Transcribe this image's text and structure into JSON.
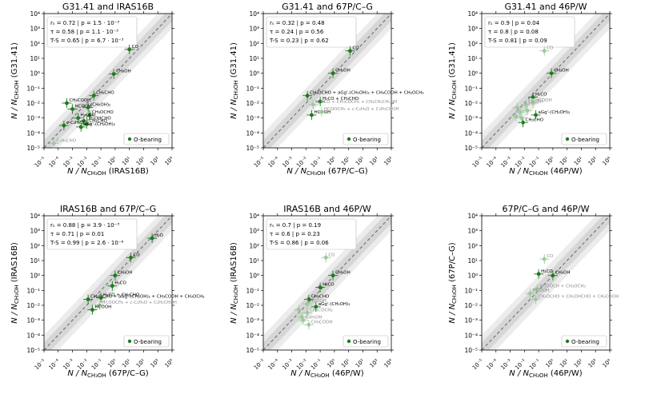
{
  "figure": {
    "legend_label": "O-bearing",
    "ylabel_sub": "CH₃OH",
    "xlabel_sub": "CH₃OH"
  },
  "chart_data": [
    {
      "type": "scatter",
      "title": "G31.41 and IRAS16B",
      "xlabel_prefix": "N / N",
      "xlabel_suffix": "(IRAS16B)",
      "ylabel_prefix": "N / N",
      "ylabel_suffix": "(G31.41)",
      "xlim_exp": [
        -5,
        4
      ],
      "ylim_exp": [
        -5,
        4
      ],
      "xticks_exp": [
        -5,
        -4,
        -3,
        -2,
        -1,
        0,
        1,
        2,
        3,
        4
      ],
      "yticks_exp": [
        -5,
        -4,
        -3,
        -2,
        -1,
        0,
        1,
        2,
        3,
        4
      ],
      "stats": [
        "rₛ = 0.72  |  p = 1.5 · 10⁻³",
        "τ = 0.58  |  p = 1.1 · 10⁻³",
        "T-S = 0.65  |  p = 6.7 · 10⁻³"
      ],
      "points": [
        {
          "label": "CO",
          "x": 1.0,
          "y": 1.6,
          "faint": false
        },
        {
          "label": "CH₃OH",
          "x": -0.1,
          "y": -0.05,
          "faint": false
        },
        {
          "label": "CH₃CHO",
          "x": -1.5,
          "y": -1.5,
          "faint": false
        },
        {
          "label": "CH₃COOH",
          "x": -3.4,
          "y": -2.0,
          "faint": false
        },
        {
          "label": "HCOOH",
          "x": -3.0,
          "y": -2.4,
          "faint": false
        },
        {
          "label": "(CH₂OH)₂",
          "x": -1.9,
          "y": -2.3,
          "faint": false
        },
        {
          "label": "CH₃OCHO",
          "x": -1.8,
          "y": -2.8,
          "faint": false
        },
        {
          "label": "CH₂OHCHO",
          "x": -2.2,
          "y": -3.2,
          "faint": false
        },
        {
          "label": "H₂CCO",
          "x": -2.6,
          "y": -3.0,
          "faint": false
        },
        {
          "label": "CH₃CHO",
          "x": -2.0,
          "y": -3.4,
          "faint": false
        },
        {
          "label": "c-C₂H₄O",
          "x": -3.6,
          "y": -3.5,
          "faint": false
        },
        {
          "label": "aGg'-(CH₂OH)₂",
          "x": -2.4,
          "y": -3.6,
          "faint": false
        },
        {
          "label": "C₂H₃CHO",
          "x": -4.3,
          "y": -4.7,
          "faint": true
        }
      ]
    },
    {
      "type": "scatter",
      "title": "G31.41 and 67P/C–G",
      "xlabel_prefix": "N / N",
      "xlabel_suffix": "(67P/C–G)",
      "ylabel_prefix": "N / N",
      "ylabel_suffix": "(G31.41)",
      "xlim_exp": [
        -5,
        4
      ],
      "ylim_exp": [
        -5,
        4
      ],
      "xticks_exp": [
        -5,
        -4,
        -3,
        -2,
        -1,
        0,
        1,
        2,
        3,
        4
      ],
      "yticks_exp": [
        -5,
        -4,
        -3,
        -2,
        -1,
        0,
        1,
        2,
        3,
        4
      ],
      "stats": [
        "rₛ = 0.32  |  p = 0.48",
        "τ = 0.24  |  p = 0.56",
        "T-S = 0.23  |  p = 0.62"
      ],
      "points": [
        {
          "label": "CO",
          "x": 1.1,
          "y": 1.5,
          "faint": false
        },
        {
          "label": "CH₃OH",
          "x": -0.1,
          "y": 0.0,
          "faint": false
        },
        {
          "label": "CH₃OCHO + aGg'-(CH₂OH)₂ + CH₃COOH + CH₃OCH₃",
          "x": -1.9,
          "y": -1.5,
          "faint": false
        },
        {
          "label": "H₂CO + CH₃CHO",
          "x": -1.0,
          "y": -1.9,
          "faint": false
        },
        {
          "label": "H₂CCO + CH₃COCH₃ + CH₃CH₂CH₂OH",
          "x": -1.5,
          "y": -2.1,
          "faint": true
        },
        {
          "label": "HCOOH",
          "x": -1.6,
          "y": -2.8,
          "faint": false
        },
        {
          "label": "HCOOCH₃ + c-C₂H₄O + C₂H₅CHOH",
          "x": -0.9,
          "y": -2.6,
          "faint": true
        }
      ]
    },
    {
      "type": "scatter",
      "title": "G31.41 and 46P/W",
      "xlabel_prefix": "N / N",
      "xlabel_suffix": "(46P/W)",
      "ylabel_prefix": "N / N",
      "ylabel_suffix": "(G31.41)",
      "xlim_exp": [
        -5,
        4
      ],
      "ylim_exp": [
        -5,
        4
      ],
      "xticks_exp": [
        -5,
        -4,
        -3,
        -2,
        -1,
        0,
        1,
        2,
        3,
        4
      ],
      "yticks_exp": [
        -5,
        -4,
        -3,
        -2,
        -1,
        0,
        1,
        2,
        3,
        4
      ],
      "stats": [
        "rₛ = 0.9  |  p = 0.04",
        "τ = 0.8  |  p = 0.08",
        "T-S = 0.81  |  p = 0.09"
      ],
      "points": [
        {
          "label": "CO",
          "x": -0.6,
          "y": 1.5,
          "faint": true
        },
        {
          "label": "CH₃OH",
          "x": -0.1,
          "y": 0.0,
          "faint": false
        },
        {
          "label": "H₂CO",
          "x": -1.4,
          "y": -1.6,
          "faint": false
        },
        {
          "label": "HCOOH",
          "x": -1.4,
          "y": -2.0,
          "faint": true
        },
        {
          "label": "CH₃OH",
          "x": -1.9,
          "y": -2.1,
          "faint": true
        },
        {
          "label": "aGg'-(CH₂OH)₂",
          "x": -1.2,
          "y": -2.8,
          "faint": false
        },
        {
          "label": "CH₃CHO",
          "x": -2.1,
          "y": -3.3,
          "faint": false
        },
        {
          "label": "",
          "x": -2.5,
          "y": -2.3,
          "faint": true
        },
        {
          "label": "",
          "x": -2.3,
          "y": -2.6,
          "faint": true
        },
        {
          "label": "",
          "x": -1.8,
          "y": -2.5,
          "faint": true
        },
        {
          "label": "",
          "x": -2.6,
          "y": -2.9,
          "faint": true
        },
        {
          "label": "",
          "x": -2.2,
          "y": -3.0,
          "faint": true
        }
      ]
    },
    {
      "type": "scatter",
      "title": "IRAS16B and 67P/C–G",
      "xlabel_prefix": "N / N",
      "xlabel_suffix": "(67P/C–G)",
      "ylabel_prefix": "N / N",
      "ylabel_suffix": "(IRAS16B)",
      "xlim_exp": [
        -5,
        4
      ],
      "ylim_exp": [
        -5,
        4
      ],
      "xticks_exp": [
        -5,
        -4,
        -3,
        -2,
        -1,
        0,
        1,
        2,
        3,
        4
      ],
      "yticks_exp": [
        -5,
        -4,
        -3,
        -2,
        -1,
        0,
        1,
        2,
        3,
        4
      ],
      "stats": [
        "rₛ = 0.88  |  p = 3.9 · 10⁻³",
        "τ = 0.71  |  p = 0.01",
        "T-S = 0.99  |  p = 2.6 · 10⁻⁶"
      ],
      "points": [
        {
          "label": "H₂O",
          "x": 2.6,
          "y": 2.5,
          "faint": false
        },
        {
          "label": "CO",
          "x": 1.1,
          "y": 1.2,
          "faint": false
        },
        {
          "label": "CH₃OH",
          "x": 0.0,
          "y": 0.0,
          "faint": false
        },
        {
          "label": "H₂CO",
          "x": -0.2,
          "y": -0.7,
          "faint": false
        },
        {
          "label": "CH₃OCHO + aGg'-(CH₂OH)₂ + CH₃COOH + CH₃OCH₃",
          "x": -1.9,
          "y": -1.6,
          "faint": false
        },
        {
          "label": "H₂CO + CH₃CHO",
          "x": -1.0,
          "y": -1.5,
          "faint": false
        },
        {
          "label": "HCOOCH₃ + c-C₂H₄O + C₂H₅CHOH",
          "x": -1.1,
          "y": -2.0,
          "faint": true
        },
        {
          "label": "HCOOH",
          "x": -1.6,
          "y": -2.3,
          "faint": false
        }
      ]
    },
    {
      "type": "scatter",
      "title": "IRAS16B and 46P/W",
      "xlabel_prefix": "N / N",
      "xlabel_suffix": "(46P/W)",
      "ylabel_prefix": "N / N",
      "ylabel_suffix": "(IRAS16B)",
      "xlim_exp": [
        -5,
        4
      ],
      "ylim_exp": [
        -5,
        4
      ],
      "xticks_exp": [
        -5,
        -4,
        -3,
        -2,
        -1,
        0,
        1,
        2,
        3,
        4
      ],
      "yticks_exp": [
        -5,
        -4,
        -3,
        -2,
        -1,
        0,
        1,
        2,
        3,
        4
      ],
      "stats": [
        "rₛ = 0.7  |  p = 0.19",
        "τ = 0.6  |  p = 0.23",
        "T-S = 0.86  |  p = 0.06"
      ],
      "points": [
        {
          "label": "CO",
          "x": -0.6,
          "y": 1.2,
          "faint": true
        },
        {
          "label": "CH₃OH",
          "x": -0.1,
          "y": 0.0,
          "faint": false
        },
        {
          "label": "H₂CO",
          "x": -1.0,
          "y": -0.8,
          "faint": false
        },
        {
          "label": "CH₃CHO",
          "x": -1.8,
          "y": -1.6,
          "faint": false
        },
        {
          "label": "HCOOH",
          "x": -1.9,
          "y": -1.9,
          "faint": true
        },
        {
          "label": "aGg'-(CH₂OH)₂",
          "x": -1.3,
          "y": -2.1,
          "faint": false
        },
        {
          "label": "CH₃COCH₃",
          "x": -1.9,
          "y": -2.5,
          "faint": true
        },
        {
          "label": "C₂H₅OH",
          "x": -2.2,
          "y": -3.0,
          "faint": true
        },
        {
          "label": "CH₃COOH",
          "x": -1.8,
          "y": -3.3,
          "faint": true
        },
        {
          "label": "",
          "x": -2.5,
          "y": -2.3,
          "faint": true
        },
        {
          "label": "",
          "x": -2.3,
          "y": -2.8,
          "faint": true
        }
      ]
    },
    {
      "type": "scatter",
      "title": "67P/C–G and 46P/W",
      "xlabel_prefix": "N / N",
      "xlabel_suffix": "(46P/W)",
      "ylabel_prefix": "N / N",
      "ylabel_suffix": "(67P/C–G)",
      "xlim_exp": [
        -5,
        4
      ],
      "ylim_exp": [
        -5,
        4
      ],
      "xticks_exp": [
        -5,
        -4,
        -3,
        -2,
        -1,
        0,
        1,
        2,
        3,
        4
      ],
      "yticks_exp": [
        -5,
        -4,
        -3,
        -2,
        -1,
        0,
        1,
        2,
        3,
        4
      ],
      "stats": [],
      "points": [
        {
          "label": "CO",
          "x": -0.6,
          "y": 1.1,
          "faint": true
        },
        {
          "label": "H₂CO",
          "x": -1.0,
          "y": 0.1,
          "faint": false
        },
        {
          "label": "CH₃OH",
          "x": 0.0,
          "y": 0.0,
          "faint": false
        },
        {
          "label": "HCOOCH + CH₃OCH₃",
          "x": -1.1,
          "y": -0.9,
          "faint": true
        },
        {
          "label": "HCOOH",
          "x": -1.6,
          "y": -1.2,
          "faint": true
        },
        {
          "label": "CH₃OCHO + CH₂OHCHO + CH₃COOH",
          "x": -1.2,
          "y": -1.6,
          "faint": true
        }
      ]
    }
  ]
}
